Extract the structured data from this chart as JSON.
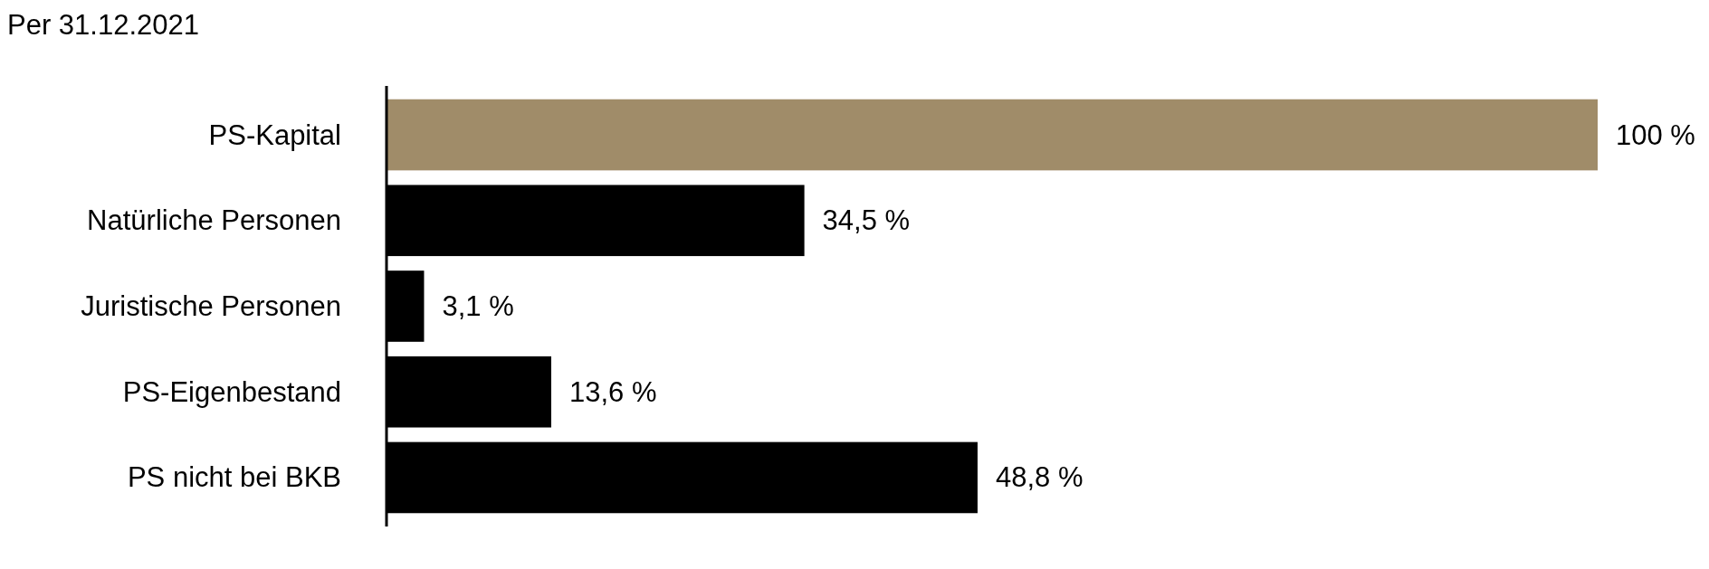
{
  "chart_data": {
    "type": "bar",
    "orientation": "horizontal",
    "title": "Per 31.12.2021",
    "categories": [
      "PS-Kapital",
      "Natürliche Personen",
      "Juristische Personen",
      "PS-Eigenbestand",
      "PS nicht bei BKB"
    ],
    "values": [
      100,
      34.5,
      3.1,
      13.6,
      48.8
    ],
    "colors": [
      "#a08c69",
      "#000000",
      "#000000",
      "#000000",
      "#000000"
    ],
    "value_labels": [
      "100 %",
      "34,5 %",
      "3,1 %",
      "13,6 %",
      "48,8 %"
    ]
  }
}
